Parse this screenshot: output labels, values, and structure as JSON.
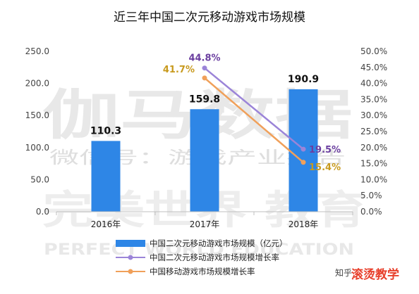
{
  "chart_data": {
    "type": "bar+line",
    "title": "近三年中国二次元移动游戏市场规模",
    "categories": [
      "2016年",
      "2017年",
      "2018年"
    ],
    "bars": {
      "name": "中国二次元移动游戏市场规模（亿元）",
      "values": [
        110.3,
        159.8,
        190.9
      ],
      "labels": [
        "110.3",
        "159.8",
        "190.9"
      ],
      "color": "#2e86e6"
    },
    "lines": [
      {
        "name": "中国二次元移动游戏市场规模增长率",
        "x": [
          "2017年",
          "2018年"
        ],
        "values": [
          44.8,
          19.5
        ],
        "labels": [
          "44.8%",
          "19.5%"
        ],
        "color": "#9b84d8",
        "label_color": "#6b3fa0"
      },
      {
        "name": "中国移动游戏市场规模增长率",
        "x": [
          "2017年",
          "2018年"
        ],
        "values": [
          41.7,
          15.4
        ],
        "labels": [
          "41.7%",
          "15.4%"
        ],
        "color": "#f0a05a",
        "label_color": "#c89a1e"
      }
    ],
    "y_left": {
      "range": [
        0,
        250
      ],
      "ticks": [
        "0.0",
        "50.0",
        "100.0",
        "150.0",
        "200.0",
        "250.0"
      ]
    },
    "y_right": {
      "range": [
        0,
        50
      ],
      "ticks": [
        "0.0%",
        "5.0%",
        "10.0%",
        "15.0%",
        "20.0%",
        "25.0%",
        "30.0%",
        "35.0%",
        "40.0%",
        "45.0%",
        "50.0%"
      ]
    },
    "grid": false,
    "legend_position": "bottom"
  },
  "watermarks": {
    "line1": "伽马数据",
    "line2": "微信号：游戏产业报告",
    "line3": "完美世界 教育",
    "line4": "PERFECT WORLD EDUCATION"
  },
  "corner_marks": {
    "zhihu": "知乎",
    "brand": "滚烫教学"
  }
}
